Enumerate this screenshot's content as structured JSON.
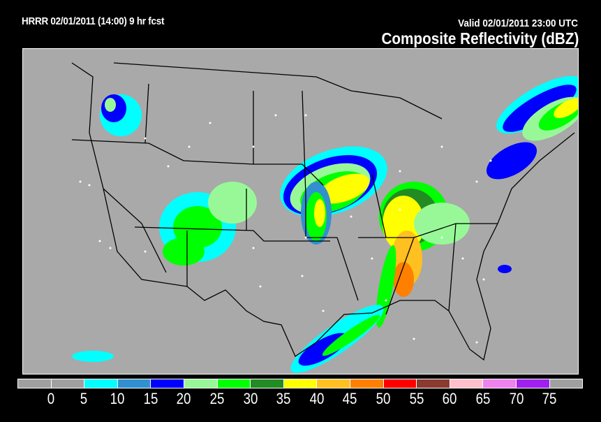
{
  "header": {
    "run_info": "HRRR 02/01/2011 (14:00) 9 hr fcst",
    "valid_time": "Valid 02/01/2011 23:00 UTC",
    "title": "Composite Reflectivity (dBZ)"
  },
  "map": {
    "background_color": "#a9a9a9",
    "boundary_color": "#000000",
    "city_marker_color": "#ffffff"
  },
  "legend": {
    "colors": [
      "#a0a0a0",
      "#a0a0a0",
      "#00ffff",
      "#3090d0",
      "#0000ff",
      "#98f898",
      "#00ff00",
      "#228b22",
      "#ffff00",
      "#ffc020",
      "#ff8000",
      "#ff0000",
      "#8b3a30",
      "#ffc0cb",
      "#ee82ee",
      "#a020f0",
      "#a0a0a0"
    ],
    "labels": [
      "0",
      "5",
      "10",
      "15",
      "20",
      "25",
      "30",
      "35",
      "40",
      "45",
      "50",
      "55",
      "60",
      "65",
      "70",
      "75"
    ]
  }
}
